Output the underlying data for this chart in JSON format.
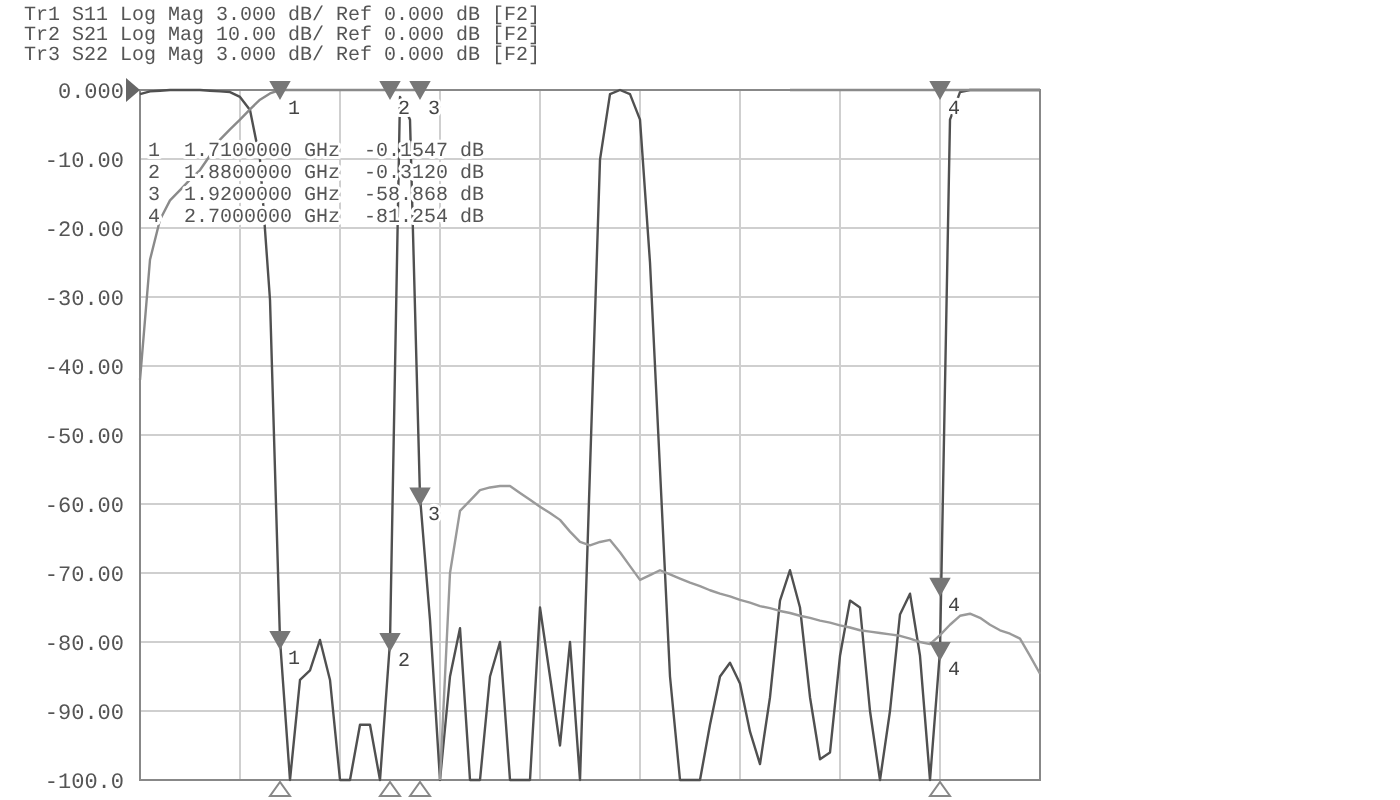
{
  "chart_data": {
    "type": "line",
    "ylim": [
      -100,
      0
    ],
    "yticks": [
      {
        "value": 0,
        "label": "0.000"
      },
      {
        "value": -10,
        "label": "-10.00"
      },
      {
        "value": -20,
        "label": "-20.00"
      },
      {
        "value": -30,
        "label": "-30.00"
      },
      {
        "value": -40,
        "label": "-40.00"
      },
      {
        "value": -50,
        "label": "-50.00"
      },
      {
        "value": -60,
        "label": "-60.00"
      },
      {
        "value": -70,
        "label": "-70.00"
      },
      {
        "value": -80,
        "label": "-80.00"
      },
      {
        "value": -90,
        "label": "-90.00"
      },
      {
        "value": -100,
        "label": "-100.0"
      }
    ],
    "tick_labels": "y",
    "grid": true,
    "line_style": "solid",
    "categories": [
      null,
      null,
      null,
      null,
      null,
      null,
      null,
      null,
      null,
      null,
      null,
      null,
      null,
      null,
      null,
      null,
      null,
      null,
      null,
      null,
      null,
      null,
      null,
      null,
      null,
      null,
      null,
      null,
      null,
      null,
      null,
      null,
      null,
      null,
      null,
      null,
      null,
      null,
      null,
      null,
      null,
      null,
      null,
      null,
      null,
      null,
      null,
      null,
      null,
      null,
      null,
      null,
      null,
      null,
      null,
      null,
      null,
      null,
      null,
      null,
      null,
      null,
      null,
      null,
      null,
      null,
      null,
      null,
      null,
      null,
      null,
      null,
      null,
      null,
      null,
      null,
      null,
      null,
      null,
      null,
      null,
      null,
      null,
      null,
      null,
      null,
      null,
      null,
      null,
      null,
      null
    ],
    "series": [
      {
        "color": "#505050",
        "values": [
          -0.6,
          -0.2,
          -0.1,
          0,
          0,
          0,
          0,
          -0.1,
          -0.2,
          -0.3,
          -1,
          -2.9,
          -10.1,
          -30.4,
          -79.7,
          -100,
          -85.5,
          -84.1,
          -79.7,
          -85.5,
          -100,
          -100,
          -92,
          -92,
          -100,
          -80,
          -1,
          -4.3,
          -58.9,
          -76.8,
          -100,
          -85,
          -78,
          -100,
          -100,
          -85,
          -80,
          -100,
          -100,
          -100,
          -75,
          -85,
          -95,
          -80,
          -100,
          -55,
          -10.1,
          -0.6,
          0,
          -0.6,
          -4.3,
          -25,
          -55,
          -85,
          -100,
          -100,
          -100,
          -92,
          -85,
          -83,
          -86,
          -93,
          -97.7,
          -88,
          -74,
          -69.6,
          -75,
          -88,
          -97,
          -96,
          -82,
          -74,
          -75,
          -90,
          -100,
          -90,
          -76,
          -73,
          -82,
          -100,
          -81.3,
          -4.3,
          -0.3,
          0,
          0,
          0,
          0,
          0,
          0,
          0,
          0
        ]
      },
      {
        "color": "#8a8a8a",
        "values": [
          -42,
          -24.6,
          -18.8,
          -16,
          -14.5,
          -13,
          -11.6,
          -9.5,
          -7.2,
          -5.7,
          -4.3,
          -2.8,
          -1.4,
          -0.5,
          0,
          0,
          0,
          0,
          0,
          0,
          0,
          0,
          0,
          0,
          0,
          0,
          0,
          0,
          0,
          null,
          null,
          null,
          null,
          null,
          null,
          null,
          null,
          null,
          null,
          null,
          null,
          null,
          null,
          null,
          null,
          null,
          null,
          null,
          null,
          null,
          null,
          null,
          null,
          null,
          null,
          null,
          null,
          null,
          null,
          null,
          null,
          null,
          null,
          null,
          null,
          0,
          0,
          0,
          0,
          0,
          0,
          0,
          0,
          0,
          0,
          0,
          0,
          0,
          0,
          0,
          0,
          0,
          0,
          0,
          0,
          0,
          0,
          0,
          0,
          0,
          0
        ]
      },
      {
        "color": "#9a9a9a",
        "values": [
          null,
          null,
          null,
          null,
          null,
          null,
          null,
          null,
          null,
          null,
          null,
          null,
          null,
          null,
          null,
          null,
          null,
          null,
          null,
          null,
          null,
          null,
          null,
          null,
          null,
          null,
          null,
          null,
          null,
          null,
          -100,
          -70,
          -61,
          -59.5,
          -58,
          -57.6,
          -57.4,
          -57.4,
          -58.4,
          -59.4,
          -60.4,
          -61.3,
          -62.3,
          -64,
          -65.5,
          -66,
          -65.5,
          -65.2,
          -67,
          -69,
          -71,
          -70.3,
          -69.6,
          -70.2,
          -70.8,
          -71.4,
          -71.9,
          -72.5,
          -73,
          -73.4,
          -73.9,
          -74.3,
          -74.8,
          -75.1,
          -75.5,
          -75.8,
          -76.2,
          -76.5,
          -76.9,
          -77.2,
          -77.6,
          -77.9,
          -78.3,
          -78.5,
          -78.7,
          -78.9,
          -79.1,
          -79.5,
          -80,
          -80.3,
          -79,
          -77.5,
          -76.2,
          -75.9,
          -76.5,
          -77.5,
          -78.3,
          -78.8,
          -79.5,
          -82,
          -84.6
        ]
      },
      {
        "type": "scatter",
        "marker": "triangle",
        "name": "1",
        "color": "#777777",
        "values": [
          null,
          null,
          null,
          null,
          null,
          null,
          null,
          null,
          null,
          null,
          null,
          null,
          null,
          null,
          0,
          null,
          null,
          null,
          null,
          null,
          null,
          null,
          null,
          null,
          null,
          null,
          null,
          null,
          null,
          null,
          null,
          null,
          null,
          null,
          null,
          null,
          null,
          null,
          null,
          null,
          null,
          null,
          null,
          null,
          null,
          null,
          null,
          null,
          null,
          null,
          null,
          null,
          null,
          null,
          null,
          null,
          null,
          null,
          null,
          null,
          null,
          null,
          null,
          null,
          null,
          null,
          null,
          null,
          null,
          null,
          null,
          null,
          null,
          null,
          null,
          null,
          null,
          null,
          null,
          null,
          null,
          null,
          null,
          null,
          null,
          null,
          null,
          null,
          null,
          null,
          null
        ]
      },
      {
        "type": "scatter",
        "marker": "triangle",
        "name": "2",
        "color": "#777777",
        "values": [
          null,
          null,
          null,
          null,
          null,
          null,
          null,
          null,
          null,
          null,
          null,
          null,
          null,
          null,
          null,
          null,
          null,
          null,
          null,
          null,
          null,
          null,
          null,
          null,
          null,
          0,
          null,
          null,
          null,
          null,
          null,
          null,
          null,
          null,
          null,
          null,
          null,
          null,
          null,
          null,
          null,
          null,
          null,
          null,
          null,
          null,
          null,
          null,
          null,
          null,
          null,
          null,
          null,
          null,
          null,
          null,
          null,
          null,
          null,
          null,
          null,
          null,
          null,
          null,
          null,
          null,
          null,
          null,
          null,
          null,
          null,
          null,
          null,
          null,
          null,
          null,
          null,
          null,
          null,
          null,
          null,
          null,
          null,
          null,
          null,
          null,
          null,
          null,
          null,
          null,
          null
        ]
      },
      {
        "type": "scatter",
        "marker": "triangle",
        "name": "3",
        "color": "#777777",
        "values": [
          null,
          null,
          null,
          null,
          null,
          null,
          null,
          null,
          null,
          null,
          null,
          null,
          null,
          null,
          null,
          null,
          null,
          null,
          null,
          null,
          null,
          null,
          null,
          null,
          null,
          null,
          null,
          null,
          0,
          null,
          null,
          null,
          null,
          null,
          null,
          null,
          null,
          null,
          null,
          null,
          null,
          null,
          null,
          null,
          null,
          null,
          null,
          null,
          null,
          null,
          null,
          null,
          null,
          null,
          null,
          null,
          null,
          null,
          null,
          null,
          null,
          null,
          null,
          null,
          null,
          null,
          null,
          null,
          null,
          null,
          null,
          null,
          null,
          null,
          null,
          null,
          null,
          null,
          null,
          null,
          null,
          null,
          null,
          null,
          null,
          null,
          null,
          null,
          null,
          null,
          null
        ]
      },
      {
        "type": "scatter",
        "marker": "triangle",
        "name": "4",
        "color": "#777777",
        "values": [
          null,
          null,
          null,
          null,
          null,
          null,
          null,
          null,
          null,
          null,
          null,
          null,
          null,
          null,
          null,
          null,
          null,
          null,
          null,
          null,
          null,
          null,
          null,
          null,
          null,
          null,
          null,
          null,
          null,
          null,
          null,
          null,
          null,
          null,
          null,
          null,
          null,
          null,
          null,
          null,
          null,
          null,
          null,
          null,
          null,
          null,
          null,
          null,
          null,
          null,
          null,
          null,
          null,
          null,
          null,
          null,
          null,
          null,
          null,
          null,
          null,
          null,
          null,
          null,
          null,
          null,
          null,
          null,
          null,
          null,
          null,
          null,
          null,
          null,
          null,
          null,
          null,
          null,
          null,
          null,
          0,
          null,
          null,
          null,
          null,
          null,
          null,
          null,
          null,
          null,
          null
        ]
      },
      {
        "type": "scatter",
        "marker": "triangle",
        "name": "1",
        "color": "#777777",
        "values": [
          null,
          null,
          null,
          null,
          null,
          null,
          null,
          null,
          null,
          null,
          null,
          null,
          null,
          null,
          -79.7,
          null,
          null,
          null,
          null,
          null,
          null,
          null,
          null,
          null,
          null,
          null,
          null,
          null,
          null,
          null,
          null,
          null,
          null,
          null,
          null,
          null,
          null,
          null,
          null,
          null,
          null,
          null,
          null,
          null,
          null,
          null,
          null,
          null,
          null,
          null,
          null,
          null,
          null,
          null,
          null,
          null,
          null,
          null,
          null,
          null,
          null,
          null,
          null,
          null,
          null,
          null,
          null,
          null,
          null,
          null,
          null,
          null,
          null,
          null,
          null,
          null,
          null,
          null,
          null,
          null,
          null,
          null,
          null,
          null,
          null,
          null,
          null,
          null,
          null,
          null,
          null
        ]
      },
      {
        "type": "scatter",
        "marker": "triangle",
        "name": "2",
        "color": "#777777",
        "values": [
          null,
          null,
          null,
          null,
          null,
          null,
          null,
          null,
          null,
          null,
          null,
          null,
          null,
          null,
          null,
          null,
          null,
          null,
          null,
          null,
          null,
          null,
          null,
          null,
          null,
          -80,
          null,
          null,
          null,
          null,
          null,
          null,
          null,
          null,
          null,
          null,
          null,
          null,
          null,
          null,
          null,
          null,
          null,
          null,
          null,
          null,
          null,
          null,
          null,
          null,
          null,
          null,
          null,
          null,
          null,
          null,
          null,
          null,
          null,
          null,
          null,
          null,
          null,
          null,
          null,
          null,
          null,
          null,
          null,
          null,
          null,
          null,
          null,
          null,
          null,
          null,
          null,
          null,
          null,
          null,
          null,
          null,
          null,
          null,
          null,
          null,
          null,
          null,
          null,
          null,
          null
        ]
      },
      {
        "type": "scatter",
        "marker": "triangle",
        "name": "3",
        "color": "#777777",
        "values": [
          null,
          null,
          null,
          null,
          null,
          null,
          null,
          null,
          null,
          null,
          null,
          null,
          null,
          null,
          null,
          null,
          null,
          null,
          null,
          null,
          null,
          null,
          null,
          null,
          null,
          null,
          null,
          null,
          -58.9,
          null,
          null,
          null,
          null,
          null,
          null,
          null,
          null,
          null,
          null,
          null,
          null,
          null,
          null,
          null,
          null,
          null,
          null,
          null,
          null,
          null,
          null,
          null,
          null,
          null,
          null,
          null,
          null,
          null,
          null,
          null,
          null,
          null,
          null,
          null,
          null,
          null,
          null,
          null,
          null,
          null,
          null,
          null,
          null,
          null,
          null,
          null,
          null,
          null,
          null,
          null,
          null,
          null,
          null,
          null,
          null,
          null,
          null,
          null,
          null,
          null,
          null
        ]
      },
      {
        "type": "scatter",
        "marker": "triangle",
        "name": "4",
        "color": "#777777",
        "values": [
          null,
          null,
          null,
          null,
          null,
          null,
          null,
          null,
          null,
          null,
          null,
          null,
          null,
          null,
          null,
          null,
          null,
          null,
          null,
          null,
          null,
          null,
          null,
          null,
          null,
          null,
          null,
          null,
          null,
          null,
          null,
          null,
          null,
          null,
          null,
          null,
          null,
          null,
          null,
          null,
          null,
          null,
          null,
          null,
          null,
          null,
          null,
          null,
          null,
          null,
          null,
          null,
          null,
          null,
          null,
          null,
          null,
          null,
          null,
          null,
          null,
          null,
          null,
          null,
          null,
          null,
          null,
          null,
          null,
          null,
          null,
          null,
          null,
          null,
          null,
          null,
          null,
          null,
          null,
          null,
          -81.3,
          null,
          null,
          null,
          null,
          null,
          null,
          null,
          null,
          null,
          null
        ]
      },
      {
        "type": "scatter",
        "marker": "triangle",
        "name": "4",
        "color": "#777777",
        "values": [
          null,
          null,
          null,
          null,
          null,
          null,
          null,
          null,
          null,
          null,
          null,
          null,
          null,
          null,
          null,
          null,
          null,
          null,
          null,
          null,
          null,
          null,
          null,
          null,
          null,
          null,
          null,
          null,
          null,
          null,
          null,
          null,
          null,
          null,
          null,
          null,
          null,
          null,
          null,
          null,
          null,
          null,
          null,
          null,
          null,
          null,
          null,
          null,
          null,
          null,
          null,
          null,
          null,
          null,
          null,
          null,
          null,
          null,
          null,
          null,
          null,
          null,
          null,
          null,
          null,
          null,
          null,
          null,
          null,
          null,
          null,
          null,
          null,
          null,
          null,
          null,
          null,
          null,
          null,
          null,
          -72,
          null,
          null,
          null,
          null,
          null,
          null,
          null,
          null,
          null,
          null
        ]
      }
    ],
    "annotations": [
      "Tr1 S11 Log Mag 3.000 dB/ Ref 0.000 dB [F2]",
      "Tr2 S21 Log Mag 10.00 dB/ Ref 0.000 dB [F2]",
      "Tr3 S22 Log Mag 3.000 dB/ Ref 0.000 dB [F2]",
      "1  1.7100000 GHz  -0.1547 dB",
      "2  1.8800000 GHz  -0.3120 dB",
      "3  1.9200000 GHz  -58.868 dB",
      "4  2.7000000 GHz  -81.254 dB"
    ]
  }
}
